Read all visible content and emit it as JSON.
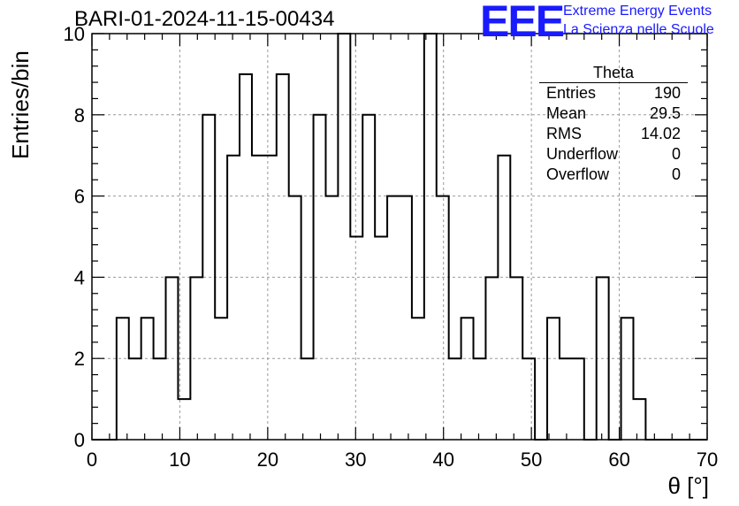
{
  "chart_data": {
    "type": "histogram",
    "title": "BARI-01-2024-11-15-00434",
    "xlabel": "θ [°]",
    "ylabel": "Entries/bin",
    "xlim": [
      0,
      70
    ],
    "ylim": [
      0,
      10
    ],
    "bin_width": 1.4,
    "bin_start": 0,
    "x_ticks": [
      0,
      10,
      20,
      30,
      40,
      50,
      60,
      70
    ],
    "y_ticks": [
      0,
      2,
      4,
      6,
      8,
      10
    ],
    "grid": true,
    "values": [
      0,
      0,
      3,
      2,
      3,
      2,
      4,
      1,
      4,
      8,
      3,
      7,
      9,
      7,
      7,
      9,
      6,
      2,
      8,
      6,
      10,
      5,
      8,
      5,
      6,
      6,
      3,
      10,
      6,
      2,
      3,
      2,
      4,
      7,
      4,
      2,
      0,
      3,
      2,
      2,
      0,
      4,
      0,
      3,
      1,
      0,
      0,
      0,
      0,
      0
    ],
    "stats": {
      "name": "Theta",
      "rows": [
        {
          "label": "Entries",
          "value": "190"
        },
        {
          "label": "Mean",
          "value": "29.5"
        },
        {
          "label": "RMS",
          "value": "14.02"
        },
        {
          "label": "Underflow",
          "value": "0"
        },
        {
          "label": "Overflow",
          "value": "0"
        }
      ]
    },
    "colors": {
      "line": "#000000",
      "grid": "#999999",
      "logo": "#1a1aff"
    }
  },
  "logo": {
    "mark": "EEE",
    "line1": "Extreme Energy Events",
    "line2": "La Scienza nelle Scuole"
  }
}
